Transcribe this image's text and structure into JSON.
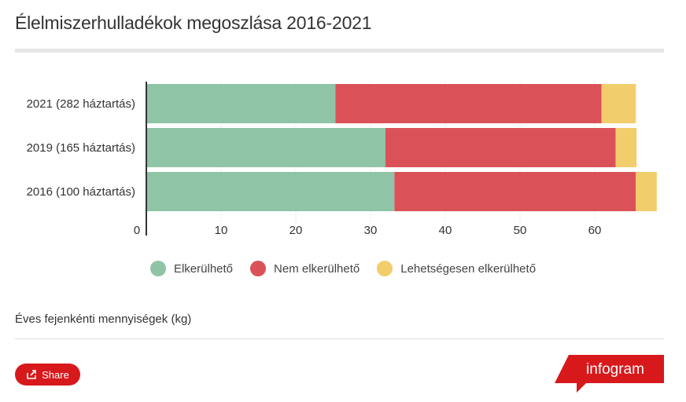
{
  "title": "Élelmiszerhulladékok megoszlása 2016-2021",
  "note": "Éves fejenkénti mennyiségek (kg)",
  "share": {
    "label": "Share",
    "icon": "share-icon"
  },
  "brand": {
    "label": "infogram",
    "color": "#d7191c"
  },
  "chart_data": {
    "type": "bar",
    "orientation": "horizontal",
    "stacked": true,
    "categories": [
      "2021 (282 háztartás)",
      "2019 (165 háztartás)",
      "2016 (100 háztartás)"
    ],
    "series": [
      {
        "name": "Elkerülhető",
        "color": "#8fc4a6",
        "values": [
          25.3,
          32.0,
          33.2
        ]
      },
      {
        "name": "Nem elkerülhető",
        "color": "#db5158",
        "values": [
          35.6,
          30.8,
          32.3
        ]
      },
      {
        "name": "Lehetségesen elkerülhető",
        "color": "#f2cd6b",
        "values": [
          4.6,
          2.8,
          2.8
        ]
      }
    ],
    "xticks": [
      "0",
      "10",
      "20",
      "30",
      "40",
      "50",
      "60"
    ],
    "xlim": [
      0,
      70
    ],
    "grid": true,
    "legend": "bottom"
  }
}
